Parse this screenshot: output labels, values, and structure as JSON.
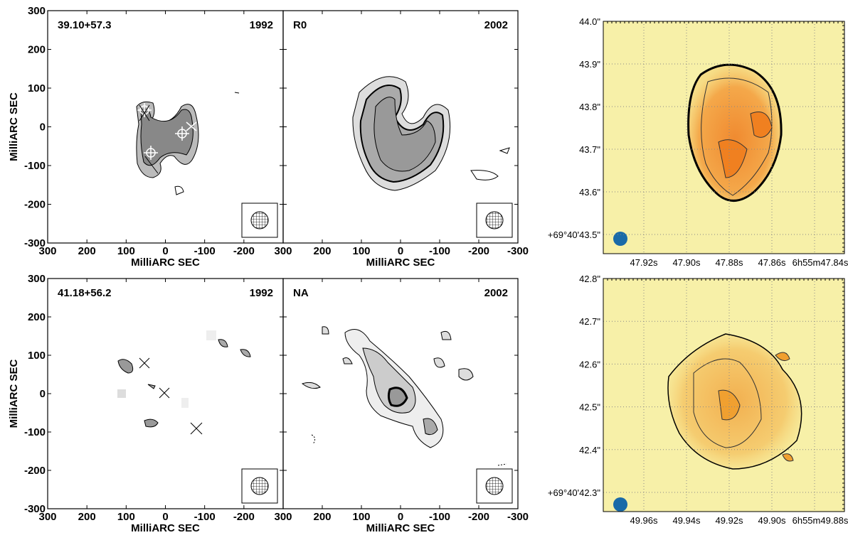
{
  "panels": [
    {
      "name": "39.10+57.3",
      "epoch": "1992",
      "y_title": "MilliARC SEC",
      "x_title": "MilliARC SEC",
      "xticks": [
        300,
        200,
        100,
        0,
        -100,
        -200
      ],
      "yticks": [
        300,
        200,
        100,
        0,
        -100,
        -200,
        -300
      ]
    },
    {
      "name": "R0",
      "epoch": "2002",
      "x_title": "MilliARC SEC",
      "xticks": [
        300,
        200,
        100,
        0,
        -100,
        -200,
        -300
      ]
    },
    {
      "name": "41.18+56.2",
      "epoch": "1992",
      "y_title": "MilliARC SEC",
      "x_title": "MilliARC SEC",
      "xticks": [
        300,
        200,
        100,
        0,
        -100,
        -200
      ],
      "yticks": [
        300,
        200,
        100,
        0,
        -100,
        -200,
        -300
      ]
    },
    {
      "name": "NA",
      "epoch": "2002",
      "x_title": "MilliARC SEC",
      "xticks": [
        300,
        200,
        100,
        0,
        -100,
        -200,
        -300
      ]
    }
  ],
  "images": [
    {
      "yticks": [
        "44.0\"",
        "43.9\"",
        "43.8\"",
        "43.7\"",
        "43.6\"",
        "+69°40'43.5\""
      ],
      "xticks": [
        "47.92s",
        "47.90s",
        "47.88s",
        "47.86s",
        "6h55m47.84s"
      ]
    },
    {
      "yticks": [
        "42.8\"",
        "42.7\"",
        "42.6\"",
        "42.5\"",
        "42.4\"",
        "+69°40'42.3\""
      ],
      "xticks": [
        "49.96s",
        "49.94s",
        "49.92s",
        "49.90s",
        "6h55m49.88s"
      ]
    }
  ]
}
